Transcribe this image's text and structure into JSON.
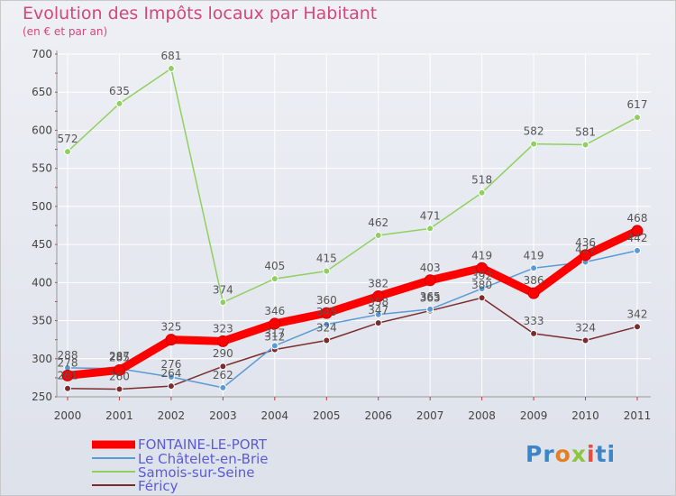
{
  "chart_data": {
    "type": "line",
    "title": "Evolution des Impôts locaux par Habitant",
    "subtitle": "(en € et par an)",
    "x": [
      "2000",
      "2001",
      "2002",
      "2003",
      "2004",
      "2005",
      "2006",
      "2007",
      "2008",
      "2009",
      "2010",
      "2011"
    ],
    "ylim": [
      250,
      700
    ],
    "yticks": [
      250,
      300,
      350,
      400,
      450,
      500,
      550,
      600,
      650,
      700
    ],
    "series": [
      {
        "name": "FONTAINE-LE-PORT",
        "color": "#ff0000",
        "width": 9,
        "values": [
          278,
          285,
          325,
          323,
          346,
          360,
          382,
          403,
          419,
          386,
          436,
          468
        ],
        "labels": [
          "278",
          "285",
          "325",
          "323",
          "346",
          "360",
          "382",
          "403",
          "419",
          "386",
          "436",
          "468"
        ]
      },
      {
        "name": "Le Châtelet-en-Brie",
        "color": "#5b9bd5",
        "width": 1.5,
        "values": [
          288,
          287,
          276,
          262,
          317,
          345,
          358,
          365,
          392,
          419,
          427,
          442
        ],
        "labels": [
          "288",
          "287",
          "276",
          "262",
          "317",
          "345",
          "358",
          "365",
          "392",
          "419",
          "427",
          "442"
        ]
      },
      {
        "name": "Samois-sur-Seine",
        "color": "#90d060",
        "width": 1.5,
        "values": [
          572,
          635,
          681,
          374,
          405,
          415,
          462,
          471,
          518,
          582,
          581,
          617
        ],
        "labels": [
          "572",
          "635",
          "681",
          "374",
          "405",
          "415",
          "462",
          "471",
          "518",
          "582",
          "581",
          "617"
        ]
      },
      {
        "name": "Féricy",
        "color": "#7b2d2d",
        "width": 1.5,
        "values": [
          261,
          260,
          264,
          290,
          312,
          324,
          347,
          363,
          380,
          333,
          324,
          342
        ],
        "labels": [
          "261",
          "260",
          "264",
          "290",
          "312",
          "324",
          "347",
          "363",
          "380",
          "333",
          "324",
          "342"
        ]
      }
    ]
  },
  "legend": {
    "items": [
      "FONTAINE-LE-PORT",
      "Le Châtelet-en-Brie",
      "Samois-sur-Seine",
      "Féricy"
    ]
  },
  "logo": {
    "p1": "Pr",
    "p2": "o",
    "p3": "x",
    "p4": "i",
    "p5": "ti"
  }
}
